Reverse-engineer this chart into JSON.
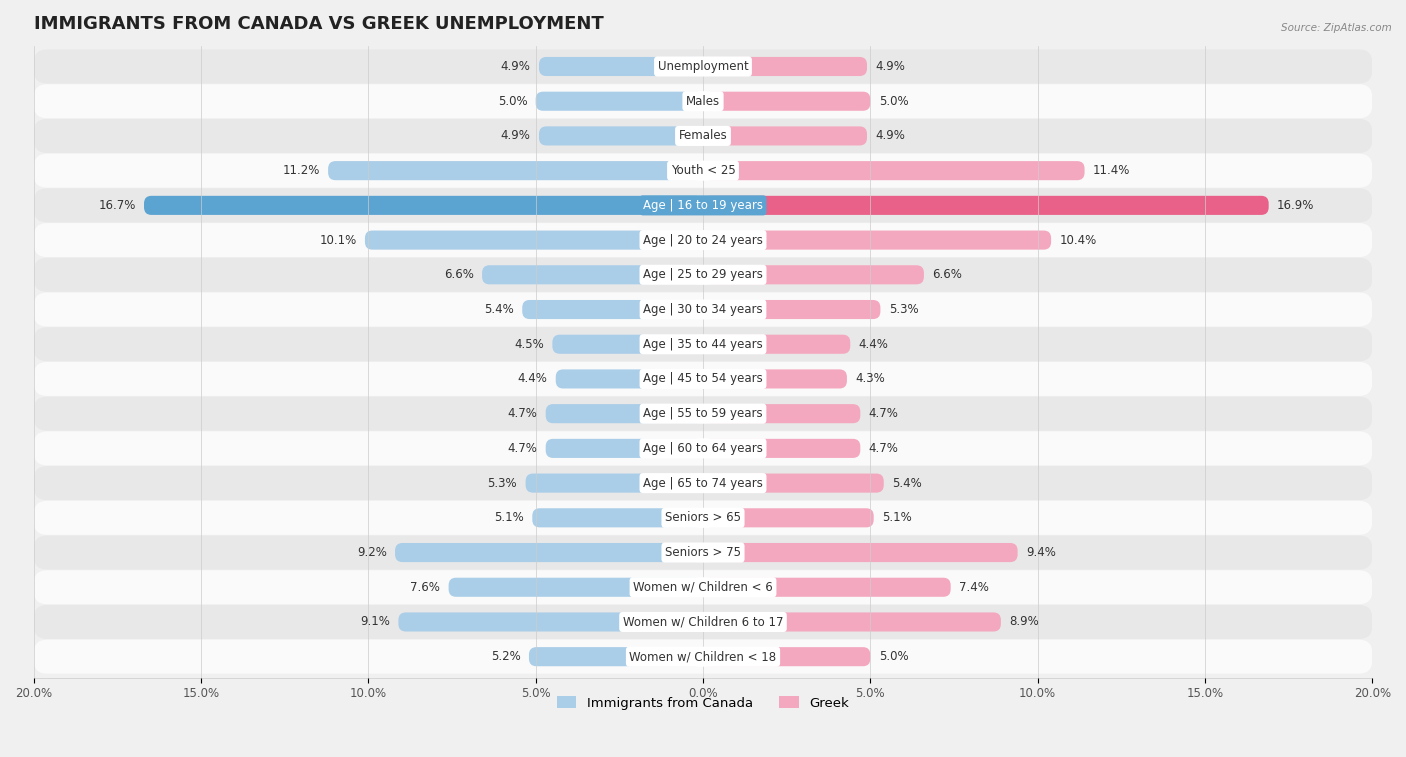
{
  "title": "IMMIGRANTS FROM CANADA VS GREEK UNEMPLOYMENT",
  "source": "Source: ZipAtlas.com",
  "categories": [
    "Unemployment",
    "Males",
    "Females",
    "Youth < 25",
    "Age | 16 to 19 years",
    "Age | 20 to 24 years",
    "Age | 25 to 29 years",
    "Age | 30 to 34 years",
    "Age | 35 to 44 years",
    "Age | 45 to 54 years",
    "Age | 55 to 59 years",
    "Age | 60 to 64 years",
    "Age | 65 to 74 years",
    "Seniors > 65",
    "Seniors > 75",
    "Women w/ Children < 6",
    "Women w/ Children 6 to 17",
    "Women w/ Children < 18"
  ],
  "left_values": [
    4.9,
    5.0,
    4.9,
    11.2,
    16.7,
    10.1,
    6.6,
    5.4,
    4.5,
    4.4,
    4.7,
    4.7,
    5.3,
    5.1,
    9.2,
    7.6,
    9.1,
    5.2
  ],
  "right_values": [
    4.9,
    5.0,
    4.9,
    11.4,
    16.9,
    10.4,
    6.6,
    5.3,
    4.4,
    4.3,
    4.7,
    4.7,
    5.4,
    5.1,
    9.4,
    7.4,
    8.9,
    5.0
  ],
  "left_color": "#aacde8",
  "right_color": "#f4a8bf",
  "highlight_left_color": "#5ba3d0",
  "highlight_right_color": "#e96088",
  "xlim": 20.0,
  "label_left": "Immigrants from Canada",
  "label_right": "Greek",
  "background_color": "#f0f0f0",
  "row_light_color": "#fafafa",
  "row_dark_color": "#e8e8e8",
  "title_fontsize": 13,
  "label_fontsize": 8.5,
  "tick_fontsize": 8.5,
  "legend_fontsize": 9.5,
  "value_fontsize": 8.5,
  "cat_fontsize": 8.5
}
